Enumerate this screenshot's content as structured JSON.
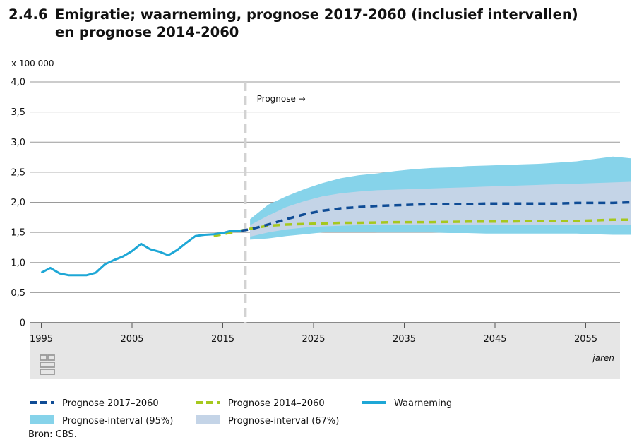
{
  "title": {
    "number": "2.4.6",
    "line1": "Emigratie; waarneming,  prognose 2017-2060 (inclusief intervallen)",
    "line2": "en prognose 2014-2060"
  },
  "source": "Bron: CBS.",
  "logo": "cbs-logo",
  "colors": {
    "observed": "#1ea7d6",
    "forecast_2017": "#0f4c95",
    "forecast_2014": "#a6c81e",
    "interval_95": "#86d3ea",
    "interval_67": "#c4d4e7",
    "prognose_line": "#d2d2d2",
    "axis_band": "#e6e6e6"
  },
  "chart_data": {
    "type": "line",
    "y_unit": "x 100 000",
    "xlabel": "jaren",
    "ylim": [
      0,
      4.0
    ],
    "xlim": [
      1994.5,
      2060
    ],
    "y_ticks": [
      "0",
      "0,5",
      "1,0",
      "1,5",
      "2,0",
      "2,5",
      "3,0",
      "3,5",
      "4,0"
    ],
    "y_tick_values": [
      0,
      0.5,
      1.0,
      1.5,
      2.0,
      2.5,
      3.0,
      3.5,
      4.0
    ],
    "x_ticks": [
      "1995",
      "2005",
      "2015",
      "2025",
      "2035",
      "2045",
      "2055"
    ],
    "x_tick_values": [
      1995,
      2005,
      2015,
      2025,
      2035,
      2045,
      2055
    ],
    "grid": true,
    "prognose_marker": {
      "x": 2017.5,
      "label": "Prognose →"
    },
    "observed": {
      "name": "Waarneming",
      "x": [
        1995,
        1996,
        1997,
        1998,
        1999,
        2000,
        2001,
        2002,
        2003,
        2004,
        2005,
        2006,
        2007,
        2008,
        2009,
        2010,
        2011,
        2012,
        2013,
        2014,
        2015,
        2016,
        2017
      ],
      "y": [
        0.83,
        0.91,
        0.82,
        0.79,
        0.79,
        0.79,
        0.83,
        0.97,
        1.04,
        1.1,
        1.19,
        1.31,
        1.22,
        1.18,
        1.12,
        1.21,
        1.33,
        1.44,
        1.46,
        1.47,
        1.49,
        1.53,
        1.53
      ]
    },
    "forecast_2017": {
      "name": "Prognose 2017–2060",
      "x": [
        2017,
        2018,
        2020,
        2022,
        2024,
        2026,
        2028,
        2030,
        2032,
        2034,
        2036,
        2038,
        2040,
        2042,
        2044,
        2046,
        2048,
        2050,
        2052,
        2054,
        2056,
        2058,
        2060
      ],
      "y": [
        1.53,
        1.55,
        1.63,
        1.72,
        1.8,
        1.86,
        1.9,
        1.92,
        1.94,
        1.95,
        1.96,
        1.97,
        1.97,
        1.97,
        1.98,
        1.98,
        1.98,
        1.98,
        1.98,
        1.99,
        1.99,
        1.99,
        2.0
      ]
    },
    "forecast_2014": {
      "name": "Prognose 2014–2060",
      "x": [
        2014,
        2016,
        2018,
        2020,
        2022,
        2024,
        2026,
        2028,
        2030,
        2034,
        2038,
        2042,
        2046,
        2050,
        2054,
        2058,
        2060
      ],
      "y": [
        1.44,
        1.5,
        1.56,
        1.61,
        1.63,
        1.64,
        1.65,
        1.66,
        1.66,
        1.67,
        1.67,
        1.68,
        1.68,
        1.69,
        1.69,
        1.71,
        1.71
      ]
    },
    "interval_95": {
      "name": "Prognose-interval (95%)",
      "x": [
        2018,
        2020,
        2022,
        2024,
        2026,
        2028,
        2030,
        2032,
        2034,
        2036,
        2038,
        2040,
        2042,
        2044,
        2046,
        2048,
        2050,
        2052,
        2054,
        2056,
        2058,
        2060
      ],
      "upper": [
        1.72,
        1.96,
        2.1,
        2.22,
        2.32,
        2.4,
        2.45,
        2.48,
        2.52,
        2.55,
        2.57,
        2.58,
        2.6,
        2.61,
        2.62,
        2.63,
        2.64,
        2.66,
        2.68,
        2.72,
        2.76,
        2.73
      ],
      "lower": [
        1.38,
        1.4,
        1.44,
        1.47,
        1.5,
        1.51,
        1.51,
        1.5,
        1.5,
        1.5,
        1.5,
        1.49,
        1.49,
        1.48,
        1.48,
        1.48,
        1.48,
        1.48,
        1.48,
        1.47,
        1.46,
        1.46
      ]
    },
    "interval_67": {
      "name": "Prognose-interval (67%)",
      "x": [
        2018,
        2020,
        2022,
        2024,
        2026,
        2028,
        2030,
        2032,
        2034,
        2036,
        2038,
        2040,
        2042,
        2044,
        2046,
        2048,
        2050,
        2052,
        2054,
        2056,
        2058,
        2060
      ],
      "upper": [
        1.62,
        1.78,
        1.92,
        2.02,
        2.1,
        2.15,
        2.18,
        2.2,
        2.21,
        2.22,
        2.23,
        2.24,
        2.25,
        2.26,
        2.27,
        2.28,
        2.29,
        2.3,
        2.31,
        2.32,
        2.33,
        2.34
      ],
      "lower": [
        1.43,
        1.5,
        1.55,
        1.58,
        1.6,
        1.61,
        1.62,
        1.62,
        1.62,
        1.62,
        1.62,
        1.62,
        1.62,
        1.62,
        1.62,
        1.62,
        1.62,
        1.63,
        1.63,
        1.63,
        1.63,
        1.63
      ]
    },
    "legend": [
      {
        "key": "forecast_2017",
        "label": "Prognose 2017–2060",
        "style": "dashed"
      },
      {
        "key": "forecast_2014",
        "label": "Prognose 2014–2060",
        "style": "dashed"
      },
      {
        "key": "observed",
        "label": "Waarneming",
        "style": "solid"
      },
      {
        "key": "interval_95",
        "label": "Prognose-interval (95%)",
        "style": "area"
      },
      {
        "key": "interval_67",
        "label": "Prognose-interval (67%)",
        "style": "area"
      }
    ]
  }
}
